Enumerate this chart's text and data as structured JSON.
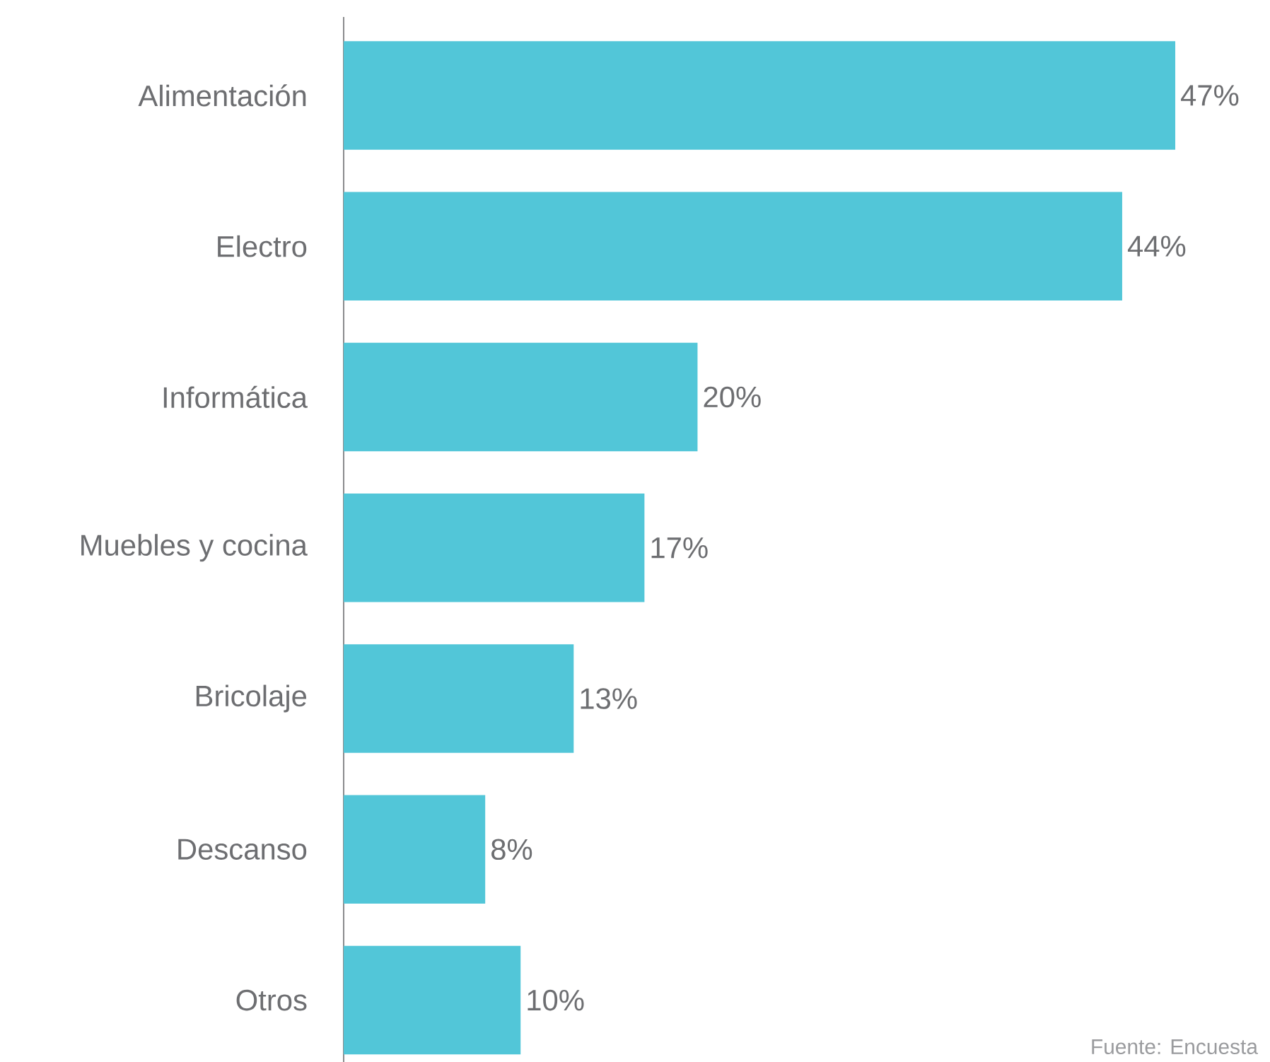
{
  "chart_data": {
    "type": "bar",
    "orientation": "horizontal",
    "categories": [
      "Alimentación",
      "Electro",
      "Informática",
      "Muebles y cocina",
      "Bricolaje",
      "Descanso",
      "Otros"
    ],
    "values": [
      47,
      44,
      20,
      17,
      13,
      8,
      10
    ],
    "value_labels": [
      "47%",
      "44%",
      "20%",
      "17%",
      "13%",
      "8%",
      "10%"
    ],
    "color": "#52c6d8",
    "annotations": [
      "Fuente: Encuesta"
    ]
  }
}
